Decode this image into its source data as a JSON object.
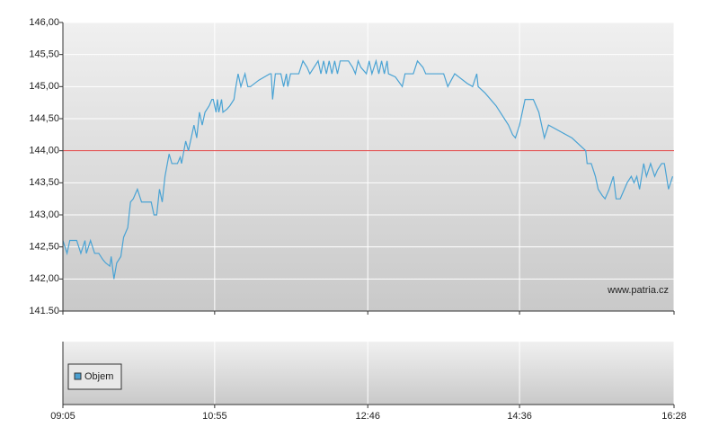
{
  "chart_data": {
    "type": "line",
    "watermark": "www.patria.cz",
    "x": [
      "09:05",
      "09:08",
      "09:10",
      "09:15",
      "09:18",
      "09:21",
      "09:22",
      "09:25",
      "09:28",
      "09:31",
      "09:34",
      "09:36",
      "09:39",
      "09:40",
      "09:42",
      "09:44",
      "09:47",
      "09:49",
      "09:52",
      "09:54",
      "09:56",
      "09:59",
      "10:02",
      "10:09",
      "10:11",
      "10:13",
      "10:15",
      "10:17",
      "10:19",
      "10:22",
      "10:24",
      "10:28",
      "10:30",
      "10:31",
      "10:34",
      "10:36",
      "10:38",
      "10:40",
      "10:42",
      "10:44",
      "10:46",
      "10:48",
      "10:51",
      "10:53",
      "10:54",
      "10:56",
      "10:57",
      "10:58",
      "11:00",
      "11:01",
      "11:04",
      "11:06",
      "11:09",
      "11:10",
      "11:12",
      "11:14",
      "11:17",
      "11:19",
      "11:21",
      "11:27",
      "11:35",
      "11:36",
      "11:37",
      "11:39",
      "11:43",
      "11:45",
      "11:47",
      "11:48",
      "11:50",
      "11:56",
      "11:59",
      "12:02",
      "12:04",
      "12:07",
      "12:10",
      "12:12",
      "12:14",
      "12:16",
      "12:18",
      "12:20",
      "12:22",
      "12:24",
      "12:26",
      "12:32",
      "12:35",
      "12:37",
      "12:39",
      "12:41",
      "12:45",
      "12:47",
      "12:49",
      "12:52",
      "12:54",
      "12:56",
      "12:58",
      "13:00",
      "13:01",
      "13:06",
      "13:11",
      "13:13",
      "13:19",
      "13:22",
      "13:26",
      "13:28",
      "13:41",
      "13:44",
      "13:49",
      "13:58",
      "14:02",
      "14:05",
      "14:06",
      "14:11",
      "14:19",
      "14:28",
      "14:31",
      "14:33",
      "14:36",
      "14:38",
      "14:40",
      "14:46",
      "14:50",
      "14:52",
      "14:54",
      "14:57",
      "15:14",
      "15:24",
      "15:25",
      "15:28",
      "15:31",
      "15:33",
      "15:36",
      "15:38",
      "15:41",
      "15:44",
      "15:46",
      "15:49",
      "15:52",
      "15:54",
      "15:57",
      "15:59",
      "16:01",
      "16:03",
      "16:06",
      "16:08",
      "16:11",
      "16:14",
      "16:16",
      "16:19",
      "16:21",
      "16:24",
      "16:27"
    ],
    "series": [
      {
        "color": "#4aa3d4",
        "values": [
          142.6,
          142.4,
          142.6,
          142.6,
          142.4,
          142.6,
          142.4,
          142.6,
          142.4,
          142.4,
          142.3,
          142.25,
          142.2,
          142.35,
          142.0,
          142.25,
          142.35,
          142.65,
          142.8,
          143.2,
          143.25,
          143.4,
          143.2,
          143.2,
          143.0,
          143.0,
          143.4,
          143.2,
          143.6,
          143.95,
          143.8,
          143.8,
          143.9,
          143.8,
          144.15,
          144.0,
          144.2,
          144.4,
          144.2,
          144.6,
          144.4,
          144.6,
          144.7,
          144.8,
          144.8,
          144.6,
          144.8,
          144.6,
          144.8,
          144.6,
          144.65,
          144.7,
          144.8,
          144.95,
          145.2,
          145.0,
          145.2,
          145.0,
          145.0,
          145.1,
          145.2,
          145.2,
          144.8,
          145.2,
          145.2,
          145.0,
          145.2,
          145.0,
          145.2,
          145.2,
          145.4,
          145.3,
          145.2,
          145.3,
          145.4,
          145.2,
          145.4,
          145.2,
          145.4,
          145.2,
          145.4,
          145.2,
          145.4,
          145.4,
          145.3,
          145.2,
          145.4,
          145.3,
          145.2,
          145.4,
          145.2,
          145.4,
          145.2,
          145.4,
          145.2,
          145.4,
          145.2,
          145.15,
          145.0,
          145.2,
          145.2,
          145.4,
          145.3,
          145.2,
          145.2,
          145.0,
          145.2,
          145.05,
          145.0,
          145.2,
          145.0,
          144.9,
          144.7,
          144.4,
          144.25,
          144.2,
          144.4,
          144.6,
          144.8,
          144.8,
          144.6,
          144.4,
          144.2,
          144.4,
          144.2,
          144.0,
          143.8,
          143.8,
          143.6,
          143.4,
          143.3,
          143.25,
          143.4,
          143.6,
          143.25,
          143.25,
          143.4,
          143.5,
          143.6,
          143.5,
          143.6,
          143.4,
          143.8,
          143.6,
          143.8,
          143.6,
          143.7,
          143.8,
          143.8,
          143.4,
          143.6
        ]
      }
    ],
    "reference_line": {
      "value": 144,
      "color": "#e04040"
    },
    "ylim": [
      141.5,
      146
    ],
    "yticks": [
      {
        "value": 146,
        "label": "146,00"
      },
      {
        "value": 145.5,
        "label": "145,50"
      },
      {
        "value": 145,
        "label": "145,00"
      },
      {
        "value": 144.5,
        "label": "144,50"
      },
      {
        "value": 144,
        "label": "144,00"
      },
      {
        "value": 143.5,
        "label": "143,50"
      },
      {
        "value": 143,
        "label": "143,00"
      },
      {
        "value": 142.5,
        "label": "142,50"
      },
      {
        "value": 142,
        "label": "142,00"
      },
      {
        "value": 141.5,
        "label": "141.50"
      }
    ],
    "xlim": [
      "09:05",
      "16:28"
    ],
    "xticks": [
      "09:05",
      "10:55",
      "12:46",
      "14:36",
      "16:28"
    ],
    "grid": true,
    "volume_legend": {
      "label": "Objem",
      "color": "#4a9fd0"
    }
  }
}
